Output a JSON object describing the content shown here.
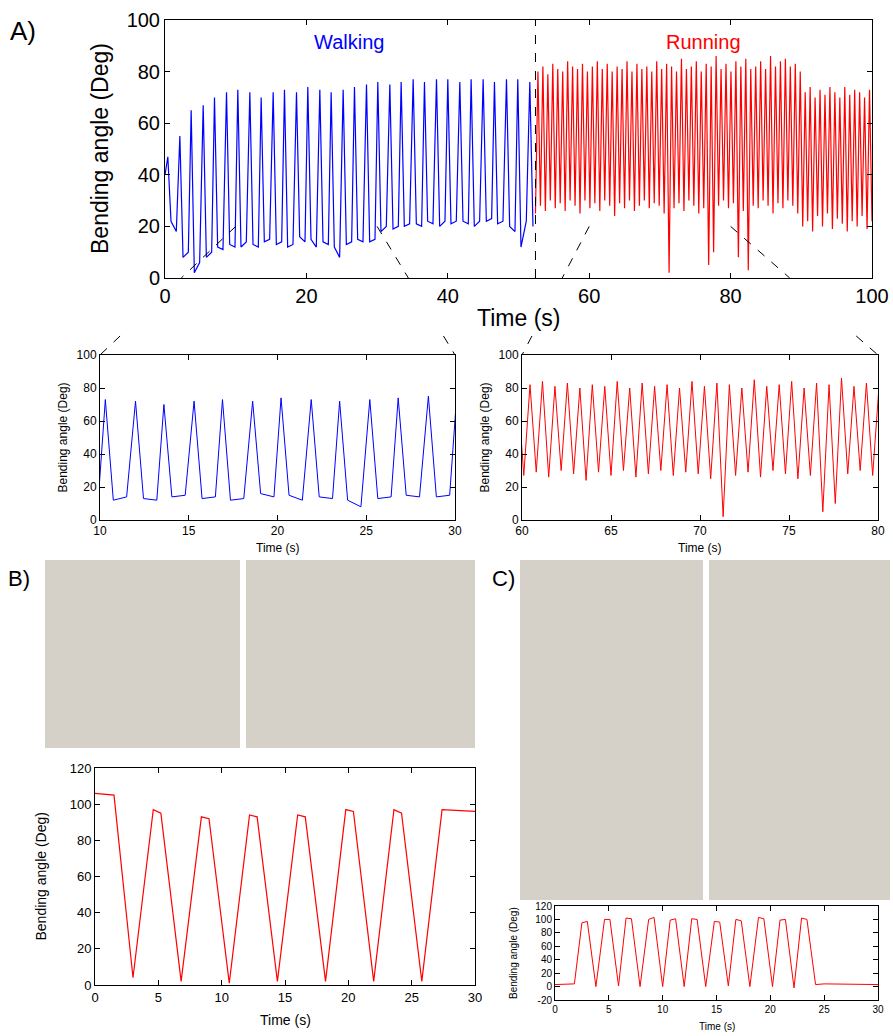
{
  "chart_data": [
    {
      "type": "line",
      "panel_label": "A)",
      "x_label": "Time (s)",
      "y_label": "Bending angle (Deg)",
      "xlim": [
        0,
        100
      ],
      "ylim": [
        0,
        100
      ],
      "xticks": [
        0,
        20,
        40,
        60,
        80,
        100
      ],
      "yticks": [
        0,
        20,
        40,
        60,
        80,
        100
      ],
      "grid": false,
      "series": [
        {
          "name": "Walking",
          "color": "#0000ff",
          "x": [
            0,
            0.4,
            0.85,
            1.6,
            2.1,
            2.55,
            3.3,
            3.7,
            4.15,
            4.9,
            5.4,
            5.85,
            6.6,
            7.0,
            7.45,
            8.2,
            8.7,
            9.15,
            9.9,
            10.3,
            10.75,
            11.5,
            12.0,
            12.45,
            13.2,
            13.6,
            14.05,
            14.8,
            15.3,
            15.75,
            16.5,
            16.9,
            17.35,
            18.1,
            18.6,
            19.05,
            19.8,
            20.2,
            20.65,
            21.4,
            21.9,
            22.35,
            23.1,
            23.5,
            23.95,
            24.7,
            25.2,
            25.65,
            26.4,
            26.8,
            27.25,
            28.0,
            28.5,
            28.95,
            29.7,
            30.1,
            30.55,
            31.3,
            31.8,
            32.25,
            33.0,
            33.4,
            33.85,
            34.6,
            35.1,
            35.55,
            36.3,
            36.7,
            37.15,
            37.9,
            38.4,
            38.85,
            39.6,
            40.0,
            40.45,
            41.2,
            41.7,
            42.15,
            42.9,
            43.3,
            43.75,
            44.5,
            45.0,
            45.45,
            46.2,
            46.6,
            47.05,
            47.8,
            48.3,
            48.75,
            49.5,
            49.9,
            50.35,
            51.1,
            51.6,
            52.05
          ],
          "values": [
            40,
            47,
            22,
            18,
            55,
            8,
            10,
            65,
            2,
            6,
            67,
            8,
            10,
            70,
            12,
            11,
            72,
            13,
            12,
            73,
            12,
            14,
            72,
            13,
            12,
            70,
            14,
            15,
            72,
            13,
            14,
            73,
            12,
            13,
            72,
            16,
            14,
            74,
            15,
            12,
            73,
            14,
            13,
            72,
            12,
            8,
            73,
            13,
            14,
            74,
            15,
            14,
            75,
            14,
            15,
            76,
            18,
            20,
            75,
            19,
            20,
            76,
            20,
            21,
            77,
            21,
            20,
            76,
            22,
            21,
            77,
            20,
            22,
            77,
            21,
            22,
            76,
            22,
            21,
            77,
            20,
            22,
            77,
            22,
            23,
            76,
            21,
            22,
            77,
            20,
            18,
            77,
            12,
            22,
            76,
            20
          ]
        },
        {
          "name": "Running",
          "color": "#ff0000",
          "x": [
            52.4,
            52.75,
            53.1,
            53.45,
            53.8,
            54.15,
            54.5,
            54.85,
            55.2,
            55.55,
            55.9,
            56.25,
            56.6,
            56.95,
            57.3,
            57.65,
            58.0,
            58.35,
            58.7,
            59.05,
            59.4,
            59.75,
            60.1,
            60.45,
            60.8,
            61.15,
            61.5,
            61.85,
            62.2,
            62.55,
            62.9,
            63.25,
            63.6,
            63.95,
            64.3,
            64.65,
            65.0,
            65.35,
            65.7,
            66.05,
            66.4,
            66.75,
            67.1,
            67.45,
            67.8,
            68.15,
            68.5,
            68.85,
            69.2,
            69.55,
            69.9,
            70.25,
            70.6,
            70.95,
            71.3,
            71.65,
            72.0,
            72.35,
            72.7,
            73.05,
            73.4,
            73.75,
            74.1,
            74.45,
            74.8,
            75.15,
            75.5,
            75.85,
            76.2,
            76.55,
            76.9,
            77.25,
            77.6,
            77.95,
            78.3,
            78.65,
            79.0,
            79.35,
            79.7,
            80.05,
            80.4,
            80.75,
            81.1,
            81.45,
            81.8,
            82.15,
            82.5,
            82.85,
            83.2,
            83.55,
            83.9,
            84.25,
            84.6,
            84.95,
            85.3,
            85.65,
            86.0,
            86.35,
            86.7,
            87.05,
            87.4,
            87.75,
            88.1,
            88.45,
            88.8,
            89.15,
            89.5,
            89.85,
            90.2,
            90.55,
            90.9,
            91.25,
            91.6,
            91.95,
            92.3,
            92.65,
            93.0,
            93.35,
            93.7,
            94.05,
            94.4,
            94.75,
            95.1,
            95.45,
            95.8,
            96.15,
            96.5,
            96.85,
            97.2,
            97.55,
            97.9,
            98.25,
            98.6,
            98.95,
            99.3,
            99.65,
            100.0
          ],
          "values": [
            25,
            80,
            28,
            82,
            26,
            79,
            30,
            83,
            27,
            81,
            29,
            80,
            26,
            84,
            30,
            82,
            28,
            81,
            25,
            83,
            30,
            80,
            27,
            82,
            29,
            84,
            26,
            81,
            30,
            83,
            28,
            80,
            24,
            82,
            29,
            81,
            27,
            84,
            30,
            80,
            26,
            83,
            28,
            81,
            30,
            82,
            27,
            80,
            29,
            84,
            28,
            81,
            25,
            83,
            2,
            82,
            27,
            80,
            29,
            85,
            26,
            81,
            30,
            82,
            28,
            84,
            25,
            80,
            27,
            83,
            5,
            82,
            10,
            86,
            28,
            81,
            30,
            83,
            27,
            80,
            29,
            84,
            8,
            82,
            26,
            85,
            3,
            81,
            28,
            82,
            27,
            84,
            30,
            81,
            28,
            86,
            25,
            82,
            29,
            84,
            27,
            85,
            30,
            82,
            28,
            83,
            25,
            80,
            20,
            72,
            22,
            74,
            18,
            70,
            24,
            73,
            20,
            71,
            25,
            74,
            19,
            72,
            23,
            70,
            21,
            74,
            18,
            71,
            22,
            73,
            20,
            72,
            24,
            70,
            19,
            73,
            22
          ]
        }
      ]
    },
    {
      "type": "line",
      "x_label": "Time (s)",
      "y_label": "Bending angle (Deg)",
      "xlim": [
        10,
        30
      ],
      "ylim": [
        0,
        100
      ],
      "xticks": [
        10,
        15,
        20,
        25,
        30
      ],
      "yticks": [
        0,
        20,
        40,
        60,
        80,
        100
      ],
      "grid": false,
      "series": [
        {
          "color": "#0000ff",
          "x": [
            9.9,
            10.3,
            10.75,
            11.5,
            12.0,
            12.45,
            13.2,
            13.6,
            14.05,
            14.8,
            15.3,
            15.75,
            16.5,
            16.9,
            17.35,
            18.1,
            18.6,
            19.05,
            19.8,
            20.2,
            20.65,
            21.4,
            21.9,
            22.35,
            23.1,
            23.5,
            23.95,
            24.7,
            25.2,
            25.65,
            26.4,
            26.8,
            27.25,
            28.0,
            28.5,
            28.95,
            29.7,
            30.1,
            30.55
          ],
          "values": [
            12,
            73,
            12,
            14,
            72,
            13,
            12,
            70,
            14,
            15,
            72,
            13,
            14,
            73,
            12,
            13,
            72,
            16,
            14,
            74,
            15,
            12,
            73,
            14,
            13,
            72,
            12,
            8,
            73,
            13,
            14,
            74,
            15,
            14,
            75,
            14,
            15,
            76,
            18
          ]
        }
      ]
    },
    {
      "type": "line",
      "x_label": "Time (s)",
      "y_label": "Bending angle (Deg)",
      "xlim": [
        60,
        80
      ],
      "ylim": [
        0,
        100
      ],
      "xticks": [
        60,
        65,
        70,
        75,
        80
      ],
      "yticks": [
        0,
        20,
        40,
        60,
        80,
        100
      ],
      "grid": false,
      "series": [
        {
          "color": "#ff0000",
          "x": [
            59.75,
            60.1,
            60.45,
            60.8,
            61.15,
            61.5,
            61.85,
            62.2,
            62.55,
            62.9,
            63.25,
            63.6,
            63.95,
            64.3,
            64.65,
            65.0,
            65.35,
            65.7,
            66.05,
            66.4,
            66.75,
            67.1,
            67.45,
            67.8,
            68.15,
            68.5,
            68.85,
            69.2,
            69.55,
            69.9,
            70.25,
            70.6,
            70.95,
            71.3,
            71.65,
            72.0,
            72.35,
            72.7,
            73.05,
            73.4,
            73.75,
            74.1,
            74.45,
            74.8,
            75.15,
            75.5,
            75.85,
            76.2,
            76.55,
            76.9,
            77.25,
            77.6,
            77.95,
            78.3,
            78.65,
            79.0,
            79.35,
            79.7,
            80.05,
            80.4
          ],
          "values": [
            80,
            27,
            82,
            29,
            84,
            26,
            81,
            30,
            83,
            28,
            80,
            24,
            82,
            29,
            81,
            27,
            84,
            30,
            80,
            26,
            83,
            28,
            81,
            30,
            82,
            27,
            80,
            29,
            84,
            28,
            81,
            25,
            83,
            2,
            82,
            27,
            80,
            29,
            85,
            26,
            81,
            30,
            82,
            28,
            84,
            25,
            80,
            27,
            83,
            5,
            82,
            10,
            86,
            28,
            81,
            30,
            83,
            27,
            80,
            29
          ]
        }
      ]
    },
    {
      "type": "line",
      "panel_label": "B)",
      "x_label": "Time (s)",
      "y_label": "Bending angle (Deg)",
      "xlim": [
        0,
        30
      ],
      "ylim": [
        0,
        120
      ],
      "xticks": [
        0,
        5,
        10,
        15,
        20,
        25,
        30
      ],
      "yticks": [
        0,
        20,
        40,
        60,
        80,
        100,
        120
      ],
      "grid": false,
      "series": [
        {
          "color": "#ff0000",
          "x": [
            0,
            1.5,
            3.0,
            4.6,
            5.2,
            6.8,
            8.4,
            9.0,
            10.6,
            12.2,
            12.8,
            14.4,
            16.0,
            16.6,
            18.2,
            19.8,
            20.4,
            22.0,
            23.6,
            24.2,
            25.8,
            27.4,
            30
          ],
          "values": [
            106,
            105,
            4,
            97,
            95,
            2,
            93,
            92,
            1,
            94,
            93,
            2,
            94,
            93,
            2,
            97,
            96,
            2,
            97,
            95,
            2,
            97,
            96
          ]
        }
      ]
    },
    {
      "type": "line",
      "panel_label": "C)",
      "x_label": "Time (s)",
      "y_label": "Bending angle (Deg)",
      "xlim": [
        0,
        30
      ],
      "ylim": [
        -20,
        120
      ],
      "xticks": [
        0,
        5,
        10,
        15,
        20,
        25,
        30
      ],
      "yticks": [
        -20,
        0,
        20,
        40,
        60,
        80,
        100,
        120
      ],
      "grid": false,
      "series": [
        {
          "color": "#ff0000",
          "x": [
            0,
            1.8,
            2.5,
            3.0,
            3.8,
            4.6,
            5.1,
            5.9,
            6.6,
            7.1,
            7.9,
            8.7,
            9.2,
            10.0,
            10.7,
            11.2,
            12.0,
            12.7,
            13.2,
            14.0,
            14.8,
            15.3,
            16.1,
            16.8,
            17.3,
            18.1,
            18.9,
            19.4,
            20.2,
            20.9,
            21.4,
            22.2,
            22.9,
            23.4,
            24.2,
            25,
            30
          ],
          "values": [
            3,
            4,
            95,
            97,
            0,
            100,
            100,
            1,
            102,
            101,
            0,
            100,
            103,
            0,
            99,
            101,
            0,
            101,
            100,
            0,
            97,
            96,
            1,
            100,
            98,
            0,
            103,
            101,
            0,
            99,
            100,
            -2,
            102,
            100,
            3,
            4,
            3
          ]
        }
      ]
    }
  ]
}
